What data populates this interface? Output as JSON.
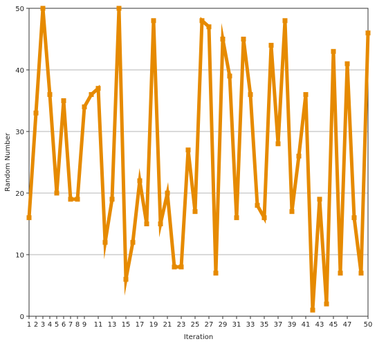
{
  "chart_data": {
    "type": "line",
    "title": "",
    "xlabel": "Iteration",
    "ylabel": "Random Number",
    "xlim": [
      1,
      50
    ],
    "ylim": [
      0,
      50
    ],
    "x_tick_labels": [
      "1",
      "2",
      "3",
      "4",
      "5",
      "6",
      "7",
      "8",
      "9",
      "11",
      "13",
      "15",
      "17",
      "19",
      "21",
      "23",
      "25",
      "27",
      "29",
      "31",
      "33",
      "35",
      "37",
      "39",
      "41",
      "43",
      "45",
      "47",
      "50"
    ],
    "y_ticks": [
      0,
      10,
      20,
      30,
      40,
      50
    ],
    "grid": "horizontal",
    "legend": "none",
    "colors": {
      "series": "#E68A00",
      "grid": "#B4B4B4",
      "axis": "#333333"
    },
    "x": [
      1,
      2,
      3,
      4,
      5,
      6,
      7,
      8,
      9,
      10,
      11,
      12,
      13,
      14,
      15,
      16,
      17,
      18,
      19,
      20,
      21,
      22,
      23,
      24,
      25,
      26,
      27,
      28,
      29,
      30,
      31,
      32,
      33,
      34,
      35,
      36,
      37,
      38,
      39,
      40,
      41,
      42,
      43,
      44,
      45,
      46,
      47,
      48,
      49,
      50
    ],
    "series": [
      {
        "values": [
          16,
          33,
          50,
          36,
          20,
          35,
          19,
          19,
          34,
          36,
          37,
          12,
          19,
          50,
          6,
          12,
          22,
          15,
          48,
          15,
          20,
          8,
          8,
          27,
          17,
          48,
          47,
          7,
          45,
          39,
          16,
          45,
          36,
          18,
          16,
          44,
          28,
          48,
          17,
          26,
          36,
          1,
          19,
          2,
          43,
          7,
          41,
          16,
          7,
          46
        ]
      }
    ]
  }
}
